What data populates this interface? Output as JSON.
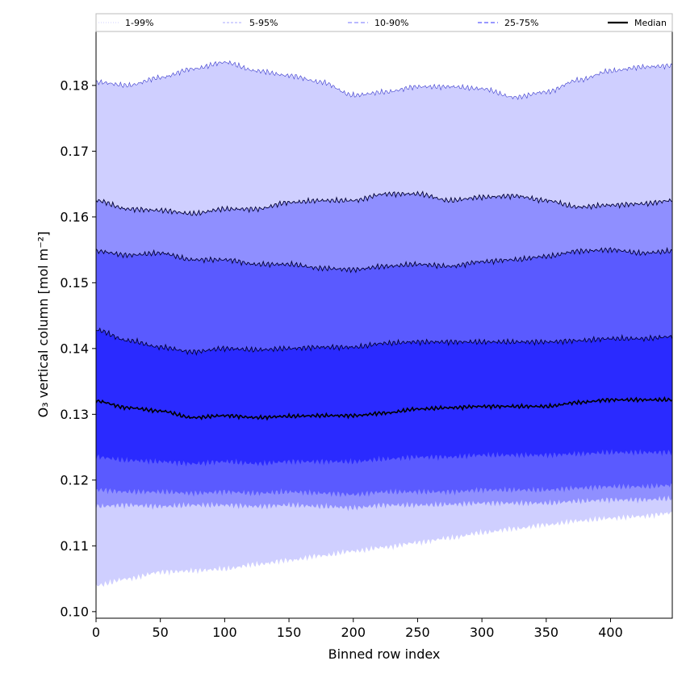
{
  "chart_data": {
    "type": "area",
    "xlabel": "Binned row index",
    "ylabel": "O₃ vertical column [mol m⁻²]",
    "xlim": [
      0,
      448
    ],
    "ylim": [
      0.099,
      0.1882
    ],
    "x_ticks": [
      0,
      50,
      100,
      150,
      200,
      250,
      300,
      350,
      400
    ],
    "y_ticks": [
      0.1,
      0.11,
      0.12,
      0.13,
      0.14,
      0.15,
      0.16,
      0.17,
      0.18
    ],
    "grid": false,
    "legend_position": "top",
    "legend": [
      {
        "label": "1-99%",
        "style": "dotted",
        "color": "#cfcfff"
      },
      {
        "label": "5-95%",
        "style": "dashed-thin",
        "color": "#8f8fff"
      },
      {
        "label": "10-90%",
        "style": "dashed",
        "color": "#8f8fff"
      },
      {
        "label": "25-75%",
        "style": "dashed",
        "color": "#5a5aff"
      },
      {
        "label": "Median",
        "style": "solid",
        "color": "#000000"
      }
    ],
    "x_samples": [
      0,
      25,
      50,
      75,
      100,
      125,
      150,
      175,
      200,
      225,
      250,
      275,
      300,
      325,
      350,
      375,
      400,
      425,
      448
    ],
    "bands": [
      {
        "name": "1-99%",
        "color": "#cfcfff",
        "lower": [
          0.104,
          0.105,
          0.106,
          0.1062,
          0.1065,
          0.1072,
          0.1078,
          0.1085,
          0.1092,
          0.1098,
          0.1105,
          0.1112,
          0.112,
          0.1126,
          0.1132,
          0.1138,
          0.1142,
          0.1145,
          0.115
        ],
        "upper": [
          0.1805,
          0.18,
          0.1812,
          0.1825,
          0.1835,
          0.1822,
          0.1815,
          0.1805,
          0.1785,
          0.179,
          0.1798,
          0.1798,
          0.1795,
          0.1782,
          0.179,
          0.1808,
          0.1822,
          0.1828,
          0.183
        ]
      },
      {
        "name": "5-95%",
        "color": "#8f8fff",
        "lower": [
          0.116,
          0.1162,
          0.116,
          0.1162,
          0.1162,
          0.116,
          0.1162,
          0.116,
          0.1158,
          0.1162,
          0.1162,
          0.1163,
          0.1165,
          0.1165,
          0.1165,
          0.1168,
          0.117,
          0.117,
          0.1172
        ],
        "upper": [
          0.1625,
          0.1612,
          0.161,
          0.1605,
          0.1612,
          0.1612,
          0.1622,
          0.1625,
          0.1625,
          0.1635,
          0.1635,
          0.1625,
          0.163,
          0.1632,
          0.1625,
          0.1615,
          0.1618,
          0.162,
          0.1625
        ]
      },
      {
        "name": "10-90%",
        "color": "#5a5aff",
        "lower": [
          0.1185,
          0.1182,
          0.1182,
          0.118,
          0.1182,
          0.118,
          0.1182,
          0.118,
          0.1178,
          0.1182,
          0.1182,
          0.1182,
          0.1185,
          0.1185,
          0.1185,
          0.1188,
          0.119,
          0.119,
          0.1192
        ],
        "upper": [
          0.1548,
          0.1542,
          0.1545,
          0.1535,
          0.1535,
          0.1528,
          0.1528,
          0.1522,
          0.152,
          0.1525,
          0.1528,
          0.1525,
          0.1532,
          0.1535,
          0.154,
          0.1548,
          0.155,
          0.1545,
          0.1548
        ]
      },
      {
        "name": "25-75%",
        "color": "#2a2aff",
        "lower": [
          0.1235,
          0.123,
          0.1228,
          0.1225,
          0.1228,
          0.1225,
          0.1228,
          0.1228,
          0.1228,
          0.1232,
          0.1235,
          0.1235,
          0.1238,
          0.1238,
          0.1238,
          0.124,
          0.1242,
          0.1242,
          0.1242
        ],
        "upper": [
          0.1428,
          0.1412,
          0.1402,
          0.1395,
          0.14,
          0.1398,
          0.14,
          0.1402,
          0.1402,
          0.1408,
          0.141,
          0.141,
          0.141,
          0.141,
          0.141,
          0.1412,
          0.1415,
          0.1415,
          0.1418
        ]
      }
    ],
    "series": [
      {
        "name": "Median",
        "color": "#000000",
        "values": [
          0.132,
          0.131,
          0.1305,
          0.1295,
          0.1298,
          0.1295,
          0.1297,
          0.1298,
          0.1298,
          0.1302,
          0.1308,
          0.131,
          0.1312,
          0.1312,
          0.1312,
          0.1318,
          0.1322,
          0.1322,
          0.1322
        ]
      }
    ]
  }
}
